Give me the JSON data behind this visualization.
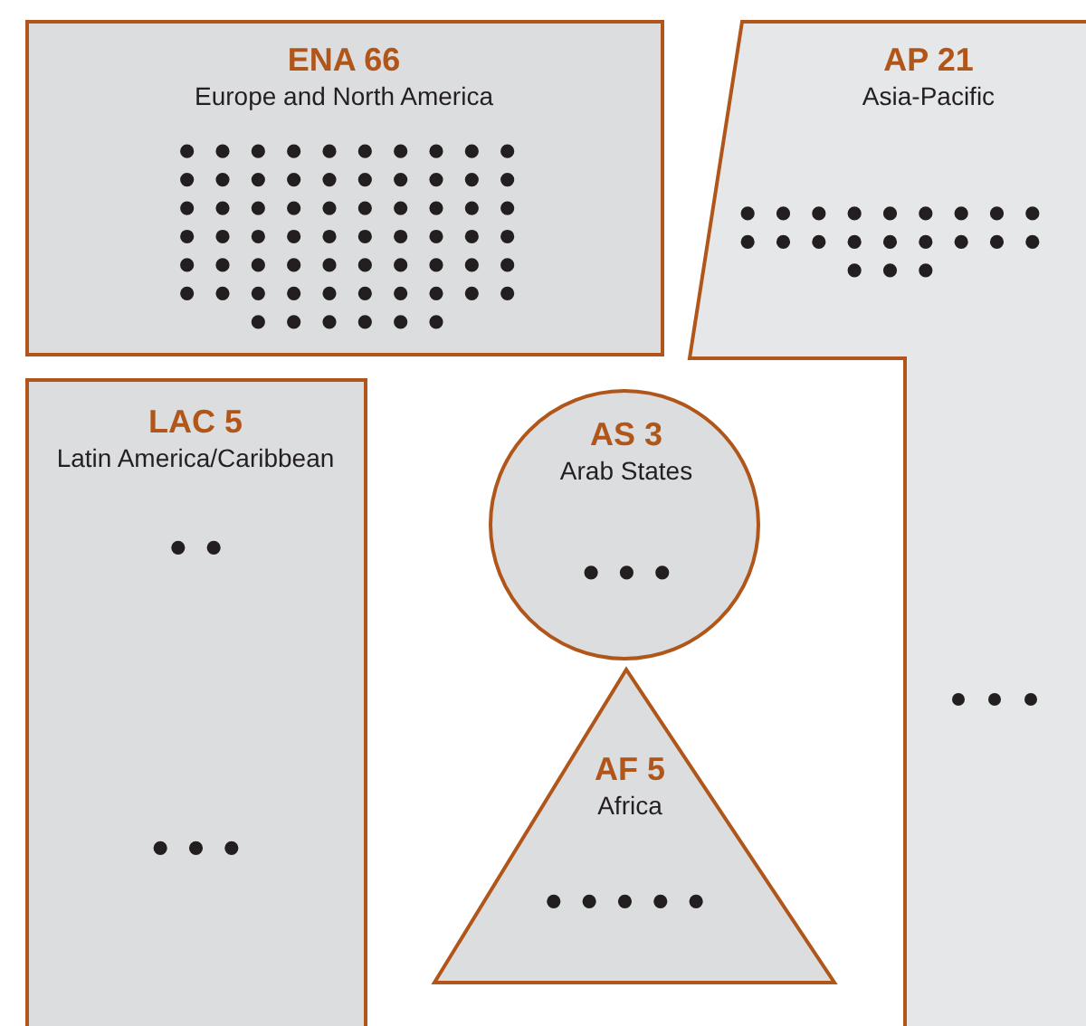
{
  "chart_data": {
    "type": "other",
    "categories": [
      "Europe and North America",
      "Asia-Pacific",
      "Latin America/Caribbean",
      "Arab States",
      "Africa"
    ],
    "value_labels": [
      "ENA 66",
      "AP 21",
      "LAC 5",
      "AS 3",
      "AF 5"
    ],
    "values": [
      66,
      21,
      5,
      3,
      5
    ],
    "colors": [
      "#dcdddf",
      "#e6e7e8",
      "#dcdddf",
      "#dcdddf",
      "#dcdddf"
    ],
    "color": "#231f20"
  }
}
